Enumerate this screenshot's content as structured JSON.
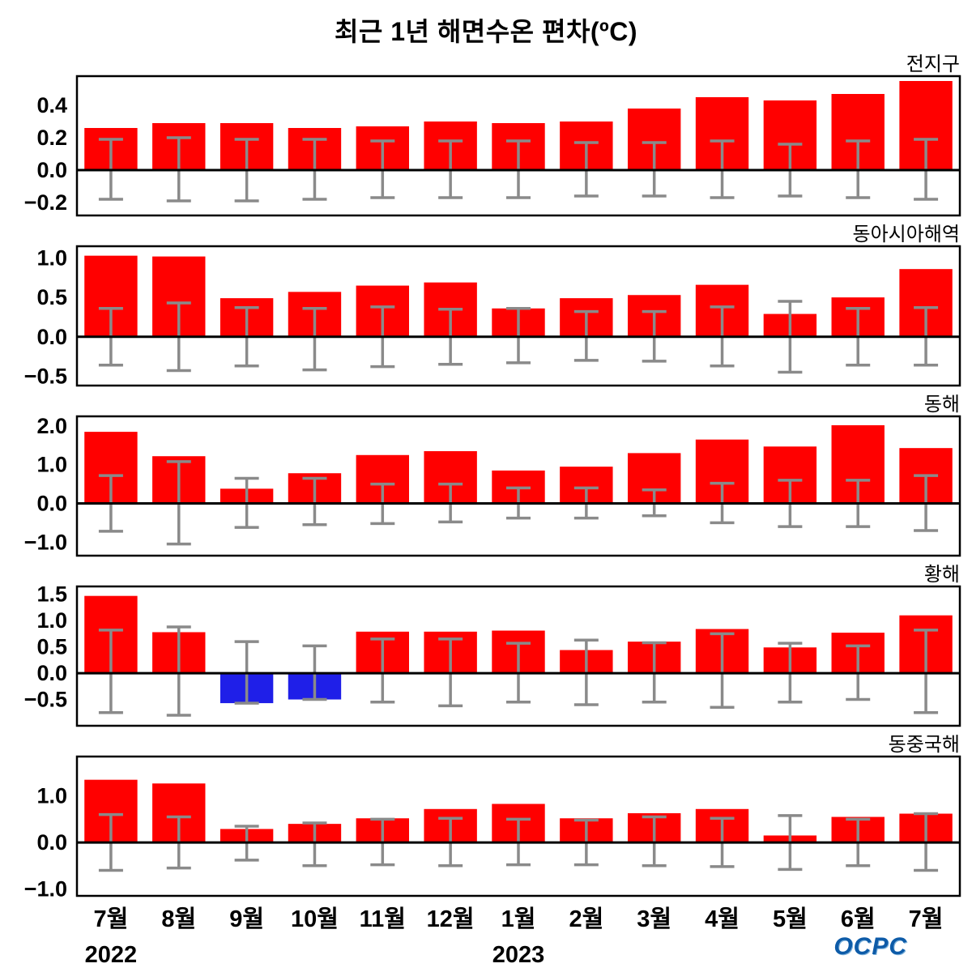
{
  "title": "최근 1년 해면수온 편차(ºC)",
  "logo": "OCPC",
  "colors": {
    "positive": "#ff0000",
    "negative": "#1f1fe8",
    "error": "#8a8a8a",
    "axis": "#000000"
  },
  "x_axis": {
    "months": [
      "7월",
      "8월",
      "9월",
      "10월",
      "11월",
      "12월",
      "1월",
      "2월",
      "3월",
      "4월",
      "5월",
      "6월",
      "7월"
    ],
    "years": [
      {
        "label": "2022",
        "month_index": 0
      },
      {
        "label": "2023",
        "month_index": 6
      }
    ]
  },
  "chart_data": [
    {
      "type": "bar",
      "title": "전지구",
      "categories": [
        "7월",
        "8월",
        "9월",
        "10월",
        "11월",
        "12월",
        "1월",
        "2월",
        "3월",
        "4월",
        "5월",
        "6월",
        "7월"
      ],
      "values": [
        0.26,
        0.29,
        0.29,
        0.26,
        0.27,
        0.3,
        0.29,
        0.3,
        0.38,
        0.45,
        0.43,
        0.47,
        0.55
      ],
      "error_high": [
        0.19,
        0.2,
        0.19,
        0.19,
        0.18,
        0.18,
        0.18,
        0.17,
        0.17,
        0.18,
        0.16,
        0.18,
        0.19
      ],
      "error_low": [
        -0.18,
        -0.19,
        -0.19,
        -0.18,
        -0.17,
        -0.17,
        -0.17,
        -0.16,
        -0.16,
        -0.17,
        -0.16,
        -0.17,
        -0.18
      ],
      "ylim": [
        -0.28,
        0.58
      ],
      "yticks": [
        0.4,
        0.2,
        0.0,
        -0.2
      ]
    },
    {
      "type": "bar",
      "title": "동아시아해역",
      "categories": [
        "7월",
        "8월",
        "9월",
        "10월",
        "11월",
        "12월",
        "1월",
        "2월",
        "3월",
        "4월",
        "5월",
        "6월",
        "7월"
      ],
      "values": [
        1.03,
        1.02,
        0.49,
        0.57,
        0.65,
        0.69,
        0.36,
        0.49,
        0.53,
        0.66,
        0.29,
        0.5,
        0.86
      ],
      "error_high": [
        0.36,
        0.43,
        0.37,
        0.36,
        0.38,
        0.35,
        0.36,
        0.32,
        0.32,
        0.38,
        0.45,
        0.36,
        0.37
      ],
      "error_low": [
        -0.36,
        -0.43,
        -0.37,
        -0.42,
        -0.38,
        -0.35,
        -0.33,
        -0.3,
        -0.31,
        -0.37,
        -0.45,
        -0.36,
        -0.36
      ],
      "ylim": [
        -0.62,
        1.15
      ],
      "yticks": [
        1.0,
        0.5,
        0.0,
        -0.5
      ]
    },
    {
      "type": "bar",
      "title": "동해",
      "categories": [
        "7월",
        "8월",
        "9월",
        "10월",
        "11월",
        "12월",
        "1월",
        "2월",
        "3월",
        "4월",
        "5월",
        "6월",
        "7월"
      ],
      "values": [
        1.85,
        1.22,
        0.38,
        0.78,
        1.25,
        1.35,
        0.85,
        0.95,
        1.3,
        1.65,
        1.47,
        2.02,
        1.43
      ],
      "error_high": [
        0.72,
        1.08,
        0.65,
        0.65,
        0.5,
        0.5,
        0.4,
        0.4,
        0.35,
        0.52,
        0.6,
        0.6,
        0.72
      ],
      "error_low": [
        -0.72,
        -1.05,
        -0.62,
        -0.55,
        -0.52,
        -0.48,
        -0.38,
        -0.38,
        -0.32,
        -0.5,
        -0.6,
        -0.6,
        -0.7
      ],
      "ylim": [
        -1.35,
        2.25
      ],
      "yticks": [
        2.0,
        1.0,
        0.0,
        -1.0
      ]
    },
    {
      "type": "bar",
      "title": "황해",
      "categories": [
        "7월",
        "8월",
        "9월",
        "10월",
        "11월",
        "12월",
        "1월",
        "2월",
        "3월",
        "4월",
        "5월",
        "6월",
        "7월"
      ],
      "values": [
        1.47,
        0.78,
        -0.57,
        -0.5,
        0.79,
        0.79,
        0.81,
        0.44,
        0.6,
        0.84,
        0.49,
        0.77,
        1.1
      ],
      "error_high": [
        0.82,
        0.88,
        0.6,
        0.52,
        0.65,
        0.65,
        0.57,
        0.63,
        0.58,
        0.75,
        0.57,
        0.52,
        0.82
      ],
      "error_low": [
        -0.75,
        -0.8,
        -0.57,
        -0.5,
        -0.55,
        -0.62,
        -0.55,
        -0.6,
        -0.55,
        -0.65,
        -0.55,
        -0.5,
        -0.75
      ],
      "ylim": [
        -1.0,
        1.65
      ],
      "yticks": [
        1.5,
        1.0,
        0.5,
        0.0,
        -0.5
      ]
    },
    {
      "type": "bar",
      "title": "동중국해",
      "categories": [
        "7월",
        "8월",
        "9월",
        "10월",
        "11월",
        "12월",
        "1월",
        "2월",
        "3월",
        "4월",
        "5월",
        "6월",
        "7월"
      ],
      "values": [
        1.35,
        1.27,
        0.29,
        0.4,
        0.52,
        0.72,
        0.83,
        0.52,
        0.63,
        0.72,
        0.15,
        0.55,
        0.62
      ],
      "error_high": [
        0.6,
        0.55,
        0.35,
        0.42,
        0.5,
        0.52,
        0.5,
        0.48,
        0.55,
        0.52,
        0.58,
        0.5,
        0.62
      ],
      "error_low": [
        -0.6,
        -0.55,
        -0.38,
        -0.5,
        -0.48,
        -0.5,
        -0.48,
        -0.48,
        -0.5,
        -0.52,
        -0.58,
        -0.5,
        -0.6
      ],
      "ylim": [
        -1.15,
        1.85
      ],
      "yticks": [
        1.0,
        0.0,
        -1.0
      ]
    }
  ]
}
